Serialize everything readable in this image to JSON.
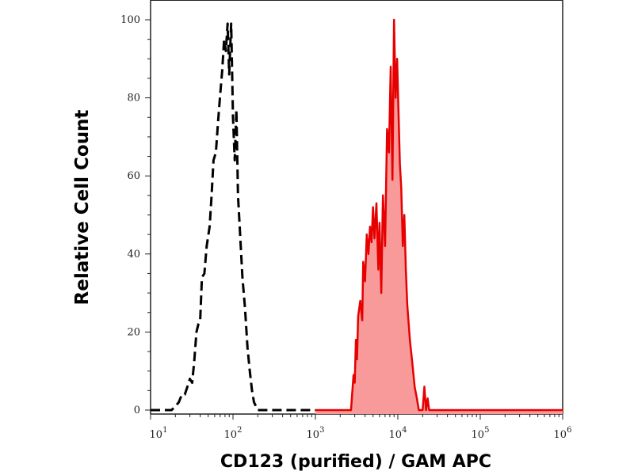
{
  "chart_data": {
    "type": "area",
    "xlabel": "CD123 (purified) / GAM APC",
    "ylabel": "Relative Cell Count",
    "x_scale": "log",
    "xlim": [
      10,
      1000000
    ],
    "ylim": [
      0,
      100
    ],
    "grid": false,
    "x_ticks": [
      {
        "base": "10",
        "exp": "1"
      },
      {
        "base": "10",
        "exp": "2"
      },
      {
        "base": "10",
        "exp": "3"
      },
      {
        "base": "10",
        "exp": "4"
      },
      {
        "base": "10",
        "exp": "5"
      },
      {
        "base": "10",
        "exp": "6"
      }
    ],
    "y_ticks": [
      "0",
      "20",
      "40",
      "60",
      "80",
      "100"
    ],
    "colors": {
      "control_line": "#000000",
      "stained_line": "#e60000",
      "stained_fill": "#f89a9a"
    },
    "series": [
      {
        "style": "dashed",
        "color": "#000000",
        "filled": false,
        "x": [
          8,
          18,
          20,
          22,
          24,
          26,
          28,
          30,
          32,
          34,
          36,
          38,
          40,
          42,
          45,
          48,
          52,
          55,
          58,
          62,
          66,
          70,
          74,
          78,
          82,
          86,
          90,
          95,
          100,
          105,
          110,
          115,
          120,
          130,
          140,
          150,
          160,
          170,
          180,
          200,
          250,
          1000
        ],
        "y": [
          0,
          0,
          1,
          2,
          4,
          4,
          6,
          8,
          7,
          13,
          20,
          22,
          23,
          34,
          35,
          42,
          47,
          55,
          64,
          66,
          74,
          81,
          87,
          95,
          92,
          99,
          86,
          99,
          75,
          64,
          77,
          55,
          48,
          34,
          26,
          16,
          10,
          5,
          2,
          0,
          0,
          0
        ]
      },
      {
        "style": "solid",
        "color": "#e60000",
        "filled": true,
        "x": [
          1000,
          2700,
          2900,
          3000,
          3100,
          3200,
          3300,
          3500,
          3700,
          3800,
          4000,
          4200,
          4400,
          4600,
          4800,
          5000,
          5200,
          5500,
          5800,
          6000,
          6300,
          6600,
          7000,
          7400,
          7800,
          8200,
          8600,
          9000,
          9400,
          9800,
          10200,
          10600,
          11000,
          11500,
          12000,
          12500,
          13000,
          14000,
          15000,
          16000,
          17000,
          18000,
          20000,
          21000,
          22000,
          23000,
          24000,
          25000,
          30000,
          1000000
        ],
        "y": [
          0,
          0,
          9,
          7,
          18,
          13,
          24,
          28,
          23,
          38,
          33,
          45,
          40,
          47,
          43,
          52,
          44,
          53,
          36,
          48,
          30,
          55,
          42,
          72,
          66,
          88,
          59,
          100,
          80,
          90,
          76,
          63,
          57,
          42,
          50,
          36,
          27,
          18,
          12,
          6,
          3,
          0,
          0,
          6,
          0,
          3,
          0,
          0,
          0,
          0
        ]
      }
    ]
  }
}
